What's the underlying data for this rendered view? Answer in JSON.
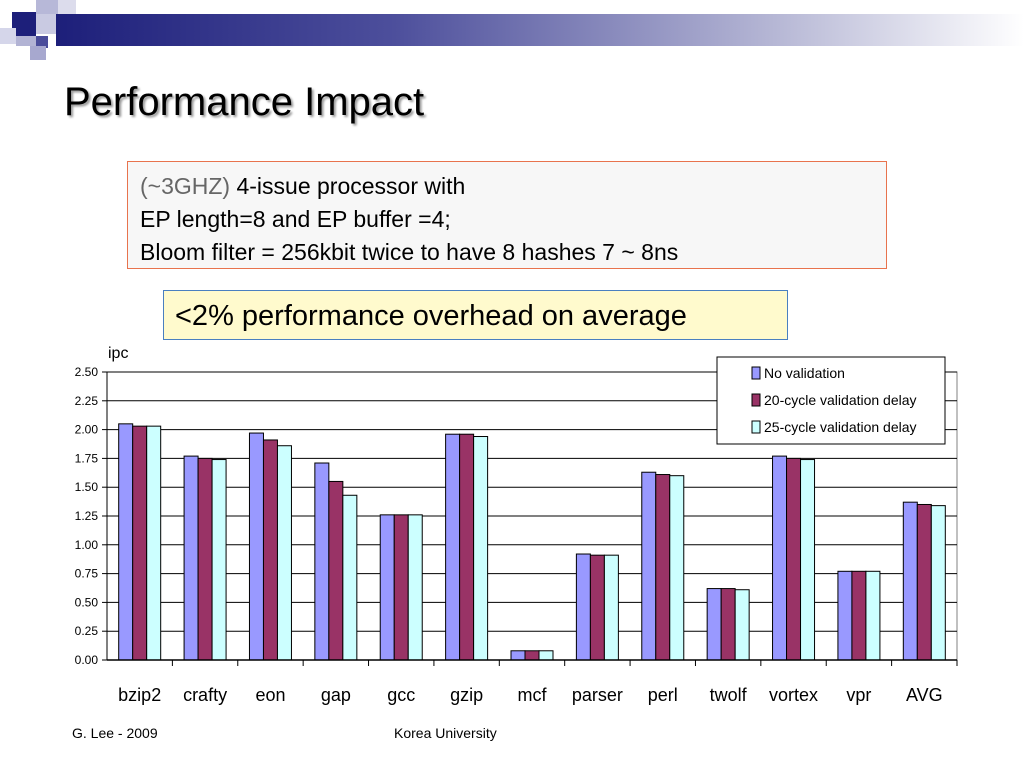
{
  "slide": {
    "title": "Performance Impact",
    "spec": {
      "freq": "(~3GHZ)",
      "line1": " 4-issue processor with",
      "line2": "EP length=8 and EP buffer =4;",
      "line3": "Bloom filter = 256kbit twice to have 8 hashes 7 ~ 8ns"
    },
    "callout": "<2% performance overhead on average",
    "footer_left": "G. Lee - 2009",
    "footer_center": "Korea University",
    "colors": {
      "accent": "#1d1f7a",
      "spec_border": "#e8734d",
      "callout_border": "#4a7fc0",
      "callout_bg": "#fffacd"
    }
  },
  "chart_data": {
    "type": "bar",
    "ylabel": "ipc",
    "ylim": [
      0,
      2.5
    ],
    "yticks": [
      "0.00",
      "0.25",
      "0.50",
      "0.75",
      "1.00",
      "1.25",
      "1.50",
      "1.75",
      "2.00",
      "2.25",
      "2.50"
    ],
    "grid": true,
    "legend_position": "top-right",
    "categories": [
      "bzip2",
      "crafty",
      "eon",
      "gap",
      "gcc",
      "gzip",
      "mcf",
      "parser",
      "perl",
      "twolf",
      "vortex",
      "vpr",
      "AVG"
    ],
    "series": [
      {
        "name": "No validation",
        "color": "#9999ff",
        "values": [
          2.05,
          1.77,
          1.97,
          1.71,
          1.26,
          1.96,
          0.08,
          0.92,
          1.63,
          0.62,
          1.77,
          0.77,
          1.37
        ]
      },
      {
        "name": "20-cycle validation delay",
        "color": "#993366",
        "values": [
          2.03,
          1.75,
          1.91,
          1.55,
          1.26,
          1.96,
          0.08,
          0.91,
          1.61,
          0.62,
          1.75,
          0.77,
          1.35
        ]
      },
      {
        "name": "25-cycle validation delay",
        "color": "#ccffff",
        "values": [
          2.03,
          1.74,
          1.86,
          1.43,
          1.26,
          1.94,
          0.08,
          0.91,
          1.6,
          0.61,
          1.74,
          0.77,
          1.34
        ]
      }
    ]
  }
}
